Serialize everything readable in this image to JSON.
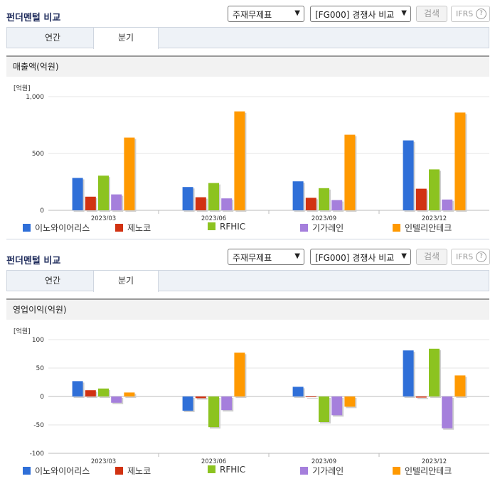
{
  "panels": [
    {
      "title": "펀더멘털 비교",
      "select1": "주재무제표",
      "select2": "[FG000] 경쟁사 비교",
      "search_label": "검색",
      "ifrs_label": "IFRS",
      "tabs": [
        "연간",
        "분기"
      ],
      "active_tab": 1,
      "section_title": "매출액(억원)",
      "unit_label": "[억원]"
    },
    {
      "title": "펀더멘털 비교",
      "select1": "주재무제표",
      "select2": "[FG000] 경쟁사 비교",
      "search_label": "검색",
      "ifrs_label": "IFRS",
      "tabs": [
        "연간",
        "분기"
      ],
      "active_tab": 1,
      "section_title": "영업이익(억원)",
      "unit_label": "[억원]"
    }
  ],
  "colors": {
    "이노와이어리스": "#2f6fd8",
    "제노코": "#d13212",
    "RFHIC": "#8cc320",
    "기가레인": "#a57fdc",
    "인텔리안테크": "#ff9900"
  },
  "chart_data": [
    {
      "type": "bar",
      "categories": [
        "2023/03",
        "2023/06",
        "2023/09",
        "2023/12"
      ],
      "ylim": [
        0,
        1000
      ],
      "yticks": [
        "0",
        "500",
        "1,000"
      ],
      "ytick_values": [
        0,
        500,
        1000
      ],
      "grid": true,
      "legend_position": "bottom",
      "series": [
        {
          "name": "이노와이어리스",
          "values": [
            285,
            205,
            255,
            615
          ]
        },
        {
          "name": "제노코",
          "values": [
            120,
            115,
            110,
            190
          ]
        },
        {
          "name": "RFHIC",
          "values": [
            305,
            240,
            195,
            360
          ]
        },
        {
          "name": "기가레인",
          "values": [
            140,
            105,
            90,
            95
          ]
        },
        {
          "name": "인텔리안테크",
          "values": [
            640,
            870,
            665,
            860
          ]
        }
      ]
    },
    {
      "type": "bar",
      "categories": [
        "2023/03",
        "2023/06",
        "2023/09",
        "2023/12"
      ],
      "ylim": [
        -100,
        100
      ],
      "yticks": [
        "-100",
        "-50",
        "0",
        "50",
        "100"
      ],
      "ytick_values": [
        -100,
        -50,
        0,
        50,
        100
      ],
      "grid": true,
      "legend_position": "bottom",
      "series": [
        {
          "name": "이노와이어리스",
          "values": [
            27,
            -25,
            17,
            81
          ]
        },
        {
          "name": "제노코",
          "values": [
            11,
            -3,
            0,
            -2
          ]
        },
        {
          "name": "RFHIC",
          "values": [
            14,
            -54,
            -45,
            84
          ]
        },
        {
          "name": "기가레인",
          "values": [
            -11,
            -24,
            -33,
            -56
          ]
        },
        {
          "name": "인텔리안테크",
          "values": [
            7,
            77,
            -18,
            37
          ]
        }
      ]
    }
  ]
}
